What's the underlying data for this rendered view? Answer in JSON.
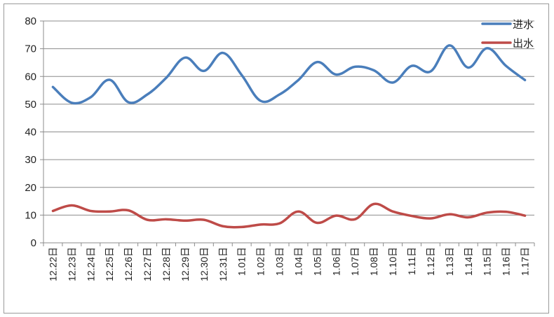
{
  "chart_data": {
    "type": "line",
    "categories": [
      "12.22日",
      "12.23日",
      "12.24日",
      "12.25日",
      "12.26日",
      "12.27日",
      "12.28日",
      "12.29日",
      "12.30日",
      "12.31日",
      "1.01日",
      "1.02日",
      "1.03日",
      "1.04日",
      "1.05日",
      "1.06日",
      "1.07日",
      "1.08日",
      "1.10日",
      "1.11日",
      "1.12日",
      "1.13日",
      "1.14日",
      "1.15日",
      "1.16日",
      "1.17日"
    ],
    "series": [
      {
        "name": "进水",
        "color": "#4a7ebb",
        "values": [
          56.2,
          50.5,
          52.5,
          58.8,
          50.7,
          53.5,
          59.5,
          66.8,
          62.0,
          68.5,
          60.5,
          51.2,
          53.5,
          58.7,
          65.2,
          60.7,
          63.5,
          62.2,
          57.8,
          63.8,
          61.8,
          71.2,
          63.2,
          70.2,
          63.8,
          58.7
        ]
      },
      {
        "name": "出水",
        "color": "#be4b48",
        "values": [
          11.5,
          13.5,
          11.5,
          11.3,
          11.7,
          8.3,
          8.5,
          8.0,
          8.3,
          6.0,
          5.7,
          6.6,
          7.0,
          11.3,
          7.2,
          9.8,
          8.5,
          14.0,
          11.3,
          9.7,
          8.8,
          10.3,
          9.2,
          10.9,
          11.2,
          9.8
        ]
      }
    ],
    "ylim": [
      0,
      80
    ],
    "yticks": [
      "0",
      "10",
      "20",
      "30",
      "40",
      "50",
      "60",
      "70",
      "80"
    ],
    "grid": true,
    "legend_position": "top-right",
    "title": "",
    "xlabel": "",
    "ylabel": ""
  }
}
